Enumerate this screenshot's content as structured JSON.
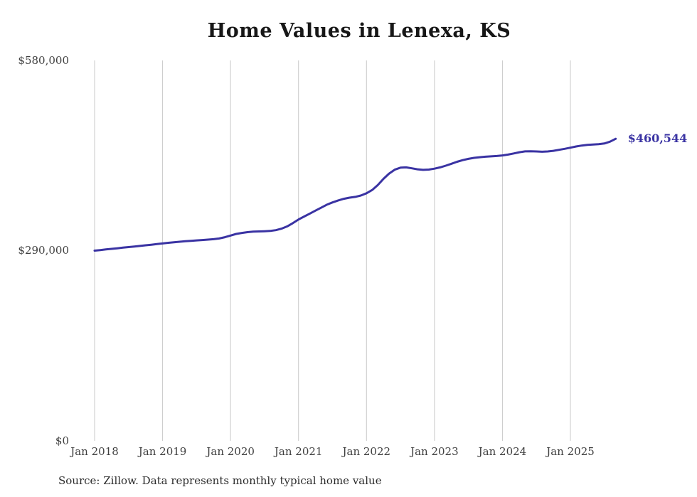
{
  "chart_data": {
    "type": "line",
    "title": "Home Values in Lenexa, KS",
    "series_name": "Monthly typical home value",
    "source_note": "Source: Zillow. Data represents monthly typical home value",
    "x_start": "2018-01",
    "x_interval": "month",
    "x_end": "2025-09",
    "x_tick_labels": [
      "Jan 2018",
      "Jan 2019",
      "Jan 2020",
      "Jan 2021",
      "Jan 2022",
      "Jan 2023",
      "Jan 2024",
      "Jan 2025"
    ],
    "y_tick_labels": [
      "$0",
      "$290,000",
      "$580,000"
    ],
    "y_ticks": [
      0,
      290000,
      580000
    ],
    "ylim": [
      0,
      580000
    ],
    "grid": "vertical-only",
    "legend": "none",
    "line_color": "#3a33a3",
    "grid_color": "#c9c9c9",
    "final_value": 460544,
    "final_value_label": "$460,544",
    "values": [
      290000,
      290900,
      291800,
      292700,
      293600,
      294500,
      295400,
      296300,
      297200,
      298100,
      299000,
      300000,
      301000,
      301900,
      302800,
      303600,
      304300,
      305000,
      305600,
      306200,
      306800,
      307500,
      308500,
      310500,
      313000,
      315500,
      317000,
      318200,
      318900,
      319300,
      319600,
      320000,
      321200,
      323500,
      327000,
      332000,
      337500,
      342000,
      346500,
      351000,
      355500,
      360000,
      363500,
      366500,
      369000,
      370800,
      372000,
      374000,
      377500,
      382500,
      390000,
      399500,
      407500,
      413500,
      416500,
      417000,
      415500,
      414000,
      413200,
      413600,
      415000,
      417000,
      419500,
      422500,
      425500,
      428000,
      430000,
      431500,
      432500,
      433200,
      433700,
      434300,
      435200,
      436500,
      438200,
      440000,
      441300,
      441600,
      441200,
      440800,
      441200,
      442200,
      443700,
      445200,
      447000,
      448800,
      450200,
      451200,
      451900,
      452400,
      453400,
      456200,
      460544
    ]
  }
}
